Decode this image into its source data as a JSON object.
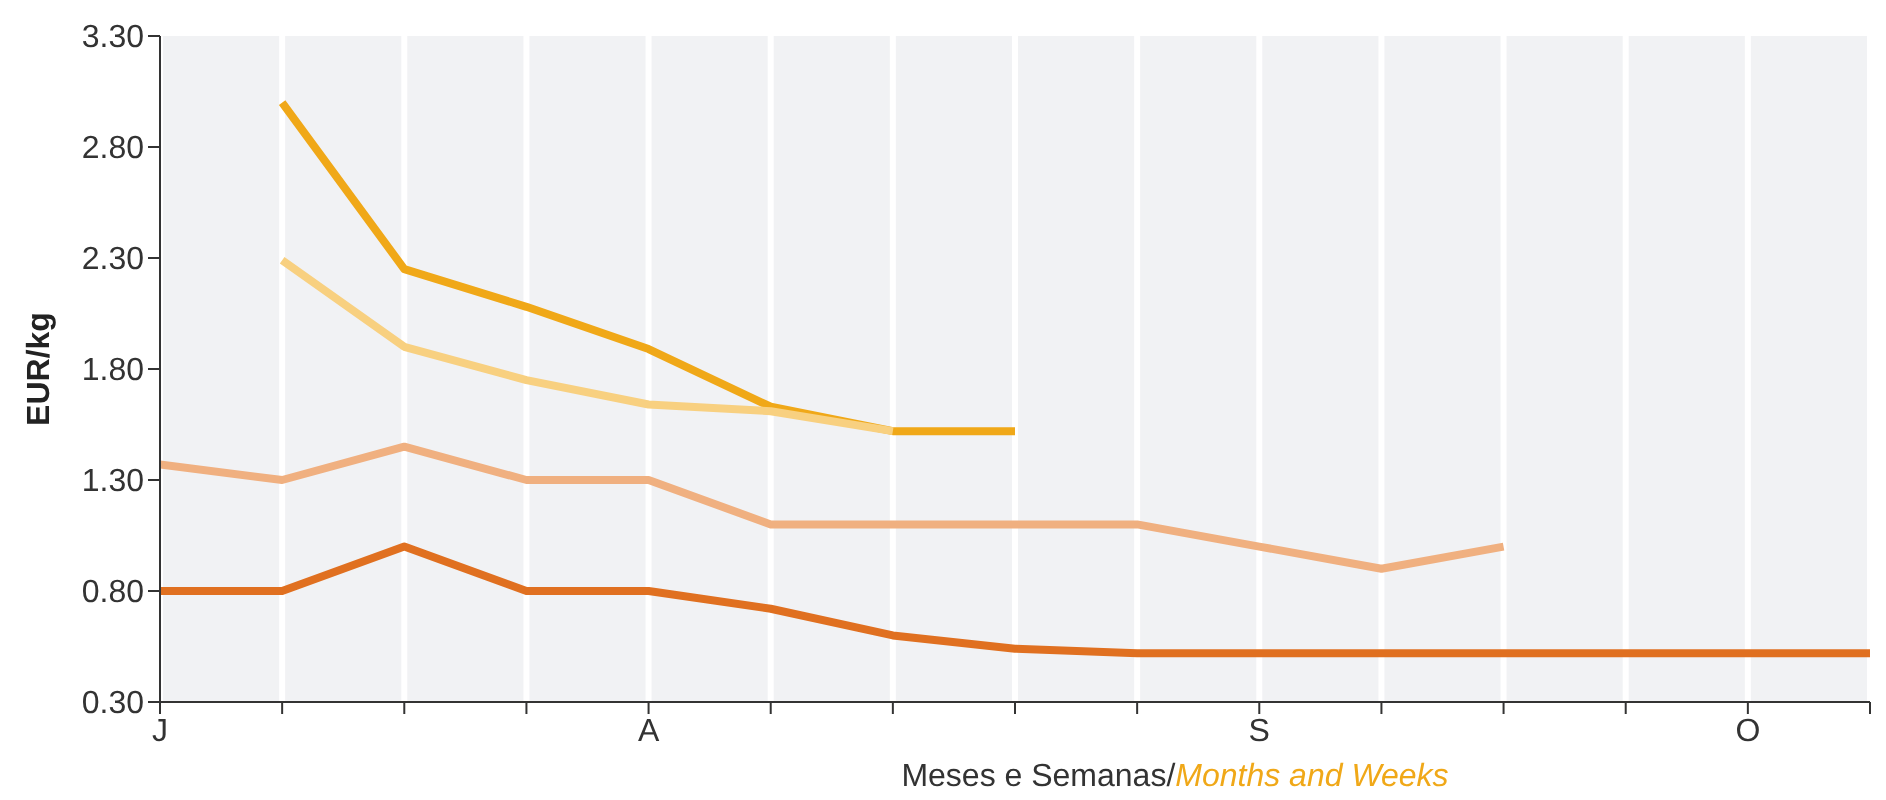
{
  "chart_data": {
    "type": "line",
    "xlabel": "Meses e Semanas/Months and Weeks",
    "ylabel": "EUR/kg",
    "categories": [
      "J",
      null,
      null,
      null,
      "A",
      null,
      null,
      null,
      null,
      "S",
      null,
      null,
      null,
      "O",
      null
    ],
    "ylim": [
      0.3,
      3.3
    ],
    "yticks": [
      {
        "value": 0.3,
        "label": "0.30"
      },
      {
        "value": 0.8,
        "label": "0.80"
      },
      {
        "value": 1.3,
        "label": "1.30"
      },
      {
        "value": 1.8,
        "label": "1.80"
      },
      {
        "value": 2.3,
        "label": "2.30"
      },
      {
        "value": 2.8,
        "label": "2.80"
      },
      {
        "value": 3.3,
        "label": "3.30"
      }
    ],
    "grid": "x",
    "marker": "none",
    "line_style": "solid",
    "series": [
      {
        "color": "#e07020",
        "values": [
          0.8,
          0.8,
          1.0,
          0.8,
          0.8,
          0.72,
          0.6,
          0.54,
          0.52,
          0.52,
          0.52,
          0.52,
          0.52,
          0.52,
          0.52
        ]
      },
      {
        "color": "#f0b080",
        "values": [
          1.37,
          1.3,
          1.45,
          1.3,
          1.3,
          1.1,
          1.1,
          1.1,
          1.1,
          1.0,
          0.9,
          1.0,
          null,
          null,
          null
        ]
      },
      {
        "color": "#f0a818",
        "values": [
          null,
          3.0,
          2.25,
          2.08,
          1.89,
          1.63,
          1.52,
          1.52,
          null,
          null,
          null,
          null,
          null,
          null,
          null
        ]
      },
      {
        "color": "#f8d080",
        "values": [
          null,
          2.29,
          1.9,
          1.75,
          1.64,
          1.61,
          1.52,
          null,
          null,
          null,
          null,
          null,
          null,
          null,
          null
        ]
      }
    ]
  }
}
